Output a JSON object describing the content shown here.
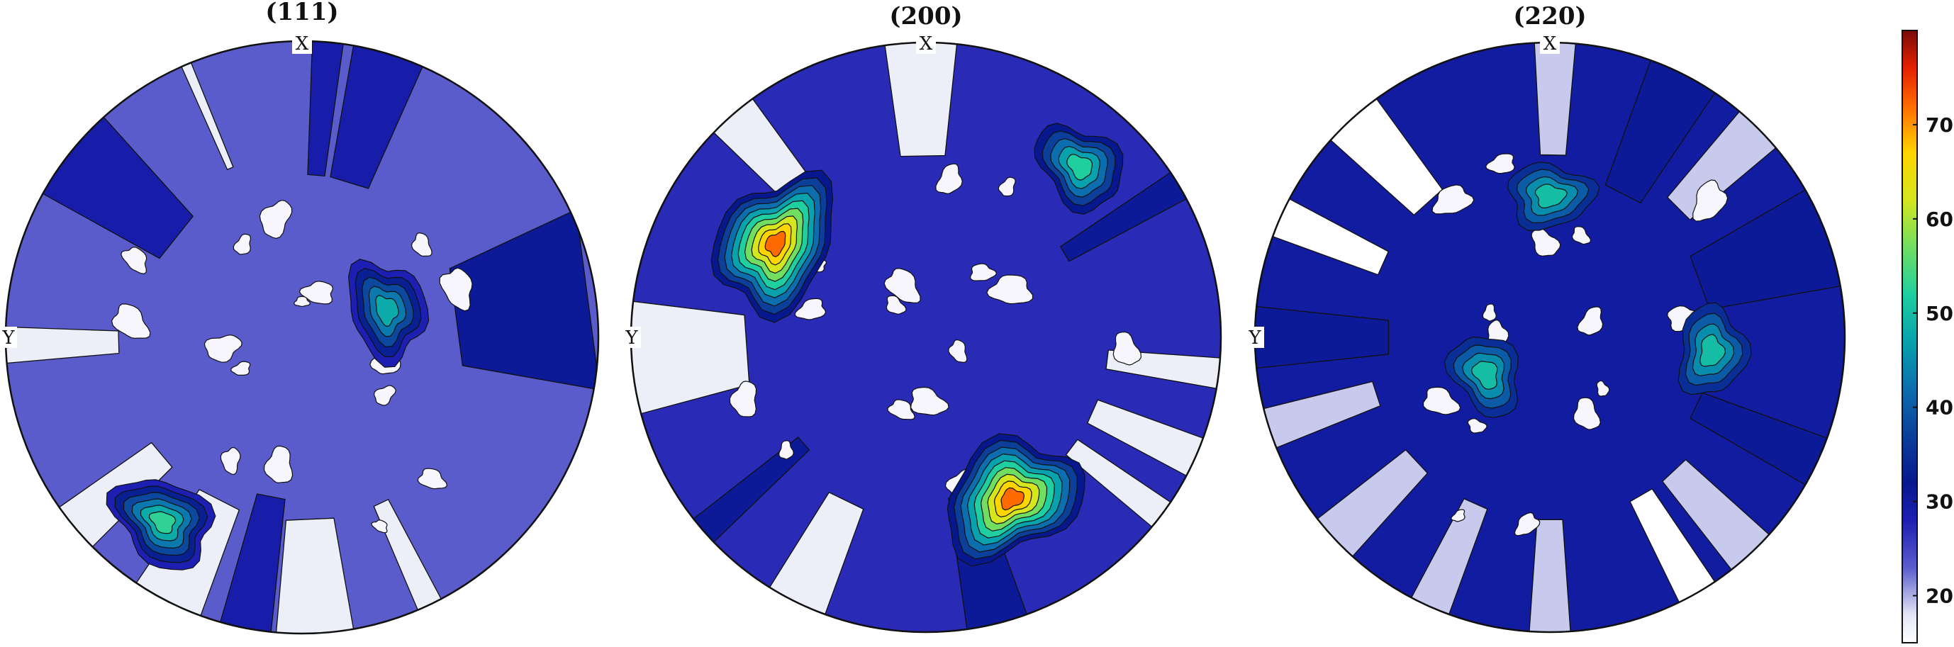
{
  "chart_data": [
    {
      "type": "heatmap",
      "subtype": "pole-figure-contour",
      "title": "(111)",
      "axis_labels": {
        "top": "X",
        "left": "Y"
      },
      "fill_background_level": 23,
      "maxima": [
        {
          "azimuth_deg": 72,
          "radius": 0.3,
          "value": 50
        },
        {
          "azimuth_deg": 217,
          "radius": 0.78,
          "value": 53
        }
      ],
      "light_sectors": [
        {
          "start_deg": 200,
          "end_deg": 214,
          "level": 17
        },
        {
          "start_deg": 225,
          "end_deg": 235,
          "level": 17
        },
        {
          "start_deg": 265,
          "end_deg": 272,
          "level": 17
        },
        {
          "start_deg": 152,
          "end_deg": 157,
          "level": 17
        },
        {
          "start_deg": 336,
          "end_deg": 338,
          "level": 17
        },
        {
          "start_deg": 170,
          "end_deg": 185,
          "level": 17
        }
      ],
      "dark_sectors": [
        {
          "start_deg": 2,
          "end_deg": 8,
          "level": 29
        },
        {
          "start_deg": 10,
          "end_deg": 24,
          "level": 29
        },
        {
          "start_deg": 65,
          "end_deg": 100,
          "level": 31
        },
        {
          "start_deg": 299,
          "end_deg": 318,
          "level": 29
        },
        {
          "start_deg": 186,
          "end_deg": 196,
          "level": 29
        }
      ]
    },
    {
      "type": "heatmap",
      "subtype": "pole-figure-contour",
      "title": "(200)",
      "axis_labels": {
        "top": "X",
        "left": "Y"
      },
      "fill_background_level": 27,
      "maxima": [
        {
          "azimuth_deg": 302,
          "radius": 0.6,
          "value": 75
        },
        {
          "azimuth_deg": 152,
          "radius": 0.62,
          "value": 75
        },
        {
          "azimuth_deg": 42,
          "radius": 0.78,
          "value": 52
        }
      ],
      "light_sectors": [
        {
          "start_deg": 352,
          "end_deg": 6,
          "level": 17
        },
        {
          "start_deg": 314,
          "end_deg": 324,
          "level": 17
        },
        {
          "start_deg": 255,
          "end_deg": 277,
          "level": 17
        },
        {
          "start_deg": 200,
          "end_deg": 212,
          "level": 17
        },
        {
          "start_deg": 110,
          "end_deg": 118,
          "level": 17
        },
        {
          "start_deg": 124,
          "end_deg": 130,
          "level": 17
        },
        {
          "start_deg": 94,
          "end_deg": 100,
          "level": 17
        }
      ],
      "dark_sectors": [
        {
          "start_deg": 160,
          "end_deg": 172,
          "level": 31
        },
        {
          "start_deg": 226,
          "end_deg": 232,
          "level": 31
        },
        {
          "start_deg": 56,
          "end_deg": 62,
          "level": 31
        }
      ]
    },
    {
      "type": "heatmap",
      "subtype": "pole-figure-contour",
      "title": "(220)",
      "axis_labels": {
        "top": "X",
        "left": "Y"
      },
      "fill_background_level": 30,
      "maxima": [
        {
          "azimuth_deg": 0,
          "radius": 0.48,
          "value": 50
        },
        {
          "azimuth_deg": 240,
          "radius": 0.25,
          "value": 50
        },
        {
          "azimuth_deg": 95,
          "radius": 0.55,
          "value": 52
        }
      ],
      "light_sectors": [
        {
          "start_deg": 357,
          "end_deg": 5,
          "level": 19
        },
        {
          "start_deg": 312,
          "end_deg": 324,
          "level": 15
        },
        {
          "start_deg": 290,
          "end_deg": 298,
          "level": 15
        },
        {
          "start_deg": 248,
          "end_deg": 256,
          "level": 19
        },
        {
          "start_deg": 222,
          "end_deg": 232,
          "level": 19
        },
        {
          "start_deg": 200,
          "end_deg": 208,
          "level": 19
        },
        {
          "start_deg": 176,
          "end_deg": 184,
          "level": 19
        },
        {
          "start_deg": 146,
          "end_deg": 154,
          "level": 15
        },
        {
          "start_deg": 132,
          "end_deg": 142,
          "level": 19
        },
        {
          "start_deg": 40,
          "end_deg": 50,
          "level": 19
        }
      ],
      "dark_sectors": [
        {
          "start_deg": 20,
          "end_deg": 34,
          "level": 31
        },
        {
          "start_deg": 60,
          "end_deg": 80,
          "level": 31
        },
        {
          "start_deg": 110,
          "end_deg": 120,
          "level": 31
        },
        {
          "start_deg": 264,
          "end_deg": 276,
          "level": 31
        }
      ]
    }
  ],
  "colorbar": {
    "ticks": [
      "20",
      "30",
      "40",
      "50",
      "60",
      "70"
    ],
    "tick_values": [
      20,
      30,
      40,
      50,
      60,
      70
    ],
    "range": [
      15,
      80
    ],
    "colormap": "parula-jet",
    "stops": [
      {
        "v": 15,
        "c": "#ffffff"
      },
      {
        "v": 18,
        "c": "#e3e5f5"
      },
      {
        "v": 23,
        "c": "#5a5ccc"
      },
      {
        "v": 28,
        "c": "#1d1fb2"
      },
      {
        "v": 32,
        "c": "#07188f"
      },
      {
        "v": 37,
        "c": "#0b3f9a"
      },
      {
        "v": 42,
        "c": "#0c6eae"
      },
      {
        "v": 47,
        "c": "#07a2ad"
      },
      {
        "v": 52,
        "c": "#1fcfa0"
      },
      {
        "v": 57,
        "c": "#71de62"
      },
      {
        "v": 62,
        "c": "#d5e61e"
      },
      {
        "v": 67,
        "c": "#ffd500"
      },
      {
        "v": 72,
        "c": "#ff6a00"
      },
      {
        "v": 76,
        "c": "#e52100"
      },
      {
        "v": 80,
        "c": "#7a0a08"
      }
    ]
  }
}
